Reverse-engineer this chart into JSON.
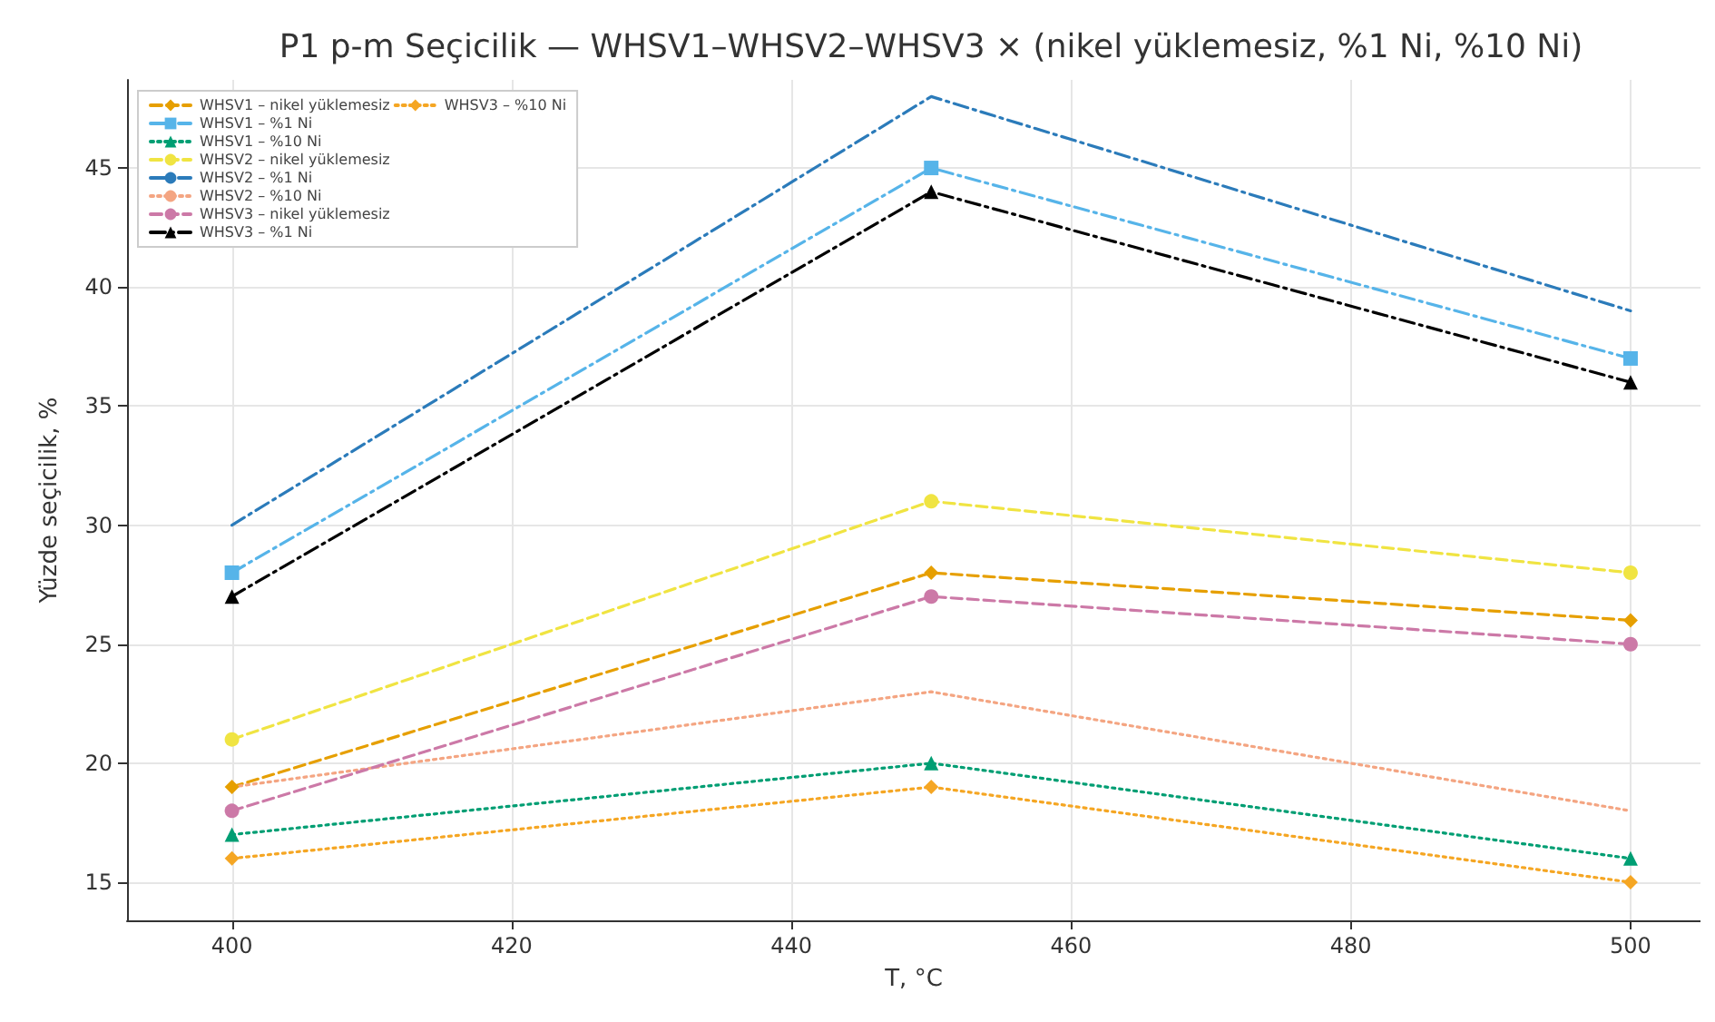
{
  "chart_data": {
    "type": "line",
    "title": "P1 p-m Seçicilik — WHSV1–WHSV2–WHSV3 × (nikel yüklemesiz, %1 Ni, %10 Ni)",
    "xlabel": "T, °C",
    "ylabel": "Yüzde seçicilik, %",
    "x": [
      400,
      450,
      500
    ],
    "series": [
      {
        "name": "WHSV1 – nikel yüklemesiz",
        "color": "#e69f00",
        "values": [
          19,
          28,
          26
        ],
        "marker": "diamond",
        "line_style": "dashed"
      },
      {
        "name": "WHSV1 – %1 Ni",
        "color": "#56b4e9",
        "values": [
          28,
          45,
          37
        ],
        "marker": "square",
        "line_style": "dashdot"
      },
      {
        "name": "WHSV1 – %10 Ni",
        "color": "#009e73",
        "values": [
          17,
          20,
          16
        ],
        "marker": "triangle",
        "line_style": "dotted"
      },
      {
        "name": "WHSV2 – nikel yüklemesiz",
        "color": "#f0e442",
        "values": [
          21,
          31,
          28
        ],
        "marker": "circle",
        "line_style": "dashed"
      },
      {
        "name": "WHSV2 – %1 Ni",
        "color": "#2b7bba",
        "values": [
          30,
          48,
          39
        ],
        "marker": "none",
        "line_style": "dashdot"
      },
      {
        "name": "WHSV2 – %10 Ni",
        "color": "#f4a582",
        "values": [
          19,
          23,
          18
        ],
        "marker": "none",
        "line_style": "dotted"
      },
      {
        "name": "WHSV3 – nikel yüklemesiz",
        "color": "#cc79a7",
        "values": [
          18,
          27,
          25
        ],
        "marker": "circle",
        "line_style": "dashed"
      },
      {
        "name": "WHSV3 – %1 Ni",
        "color": "#000000",
        "values": [
          27,
          44,
          36
        ],
        "marker": "triangle",
        "line_style": "dashdot"
      },
      {
        "name": "WHSV3 – %10 Ni",
        "color": "#f5a623",
        "values": [
          16,
          19,
          15
        ],
        "marker": "diamond",
        "line_style": "dotted"
      }
    ],
    "xlim": [
      392.5,
      505
    ],
    "ylim": [
      13.4,
      48.7
    ],
    "xticks": [
      400,
      420,
      440,
      460,
      480,
      500
    ],
    "yticks": [
      15,
      20,
      25,
      30,
      35,
      40,
      45
    ],
    "grid": true,
    "legend": "top left"
  }
}
